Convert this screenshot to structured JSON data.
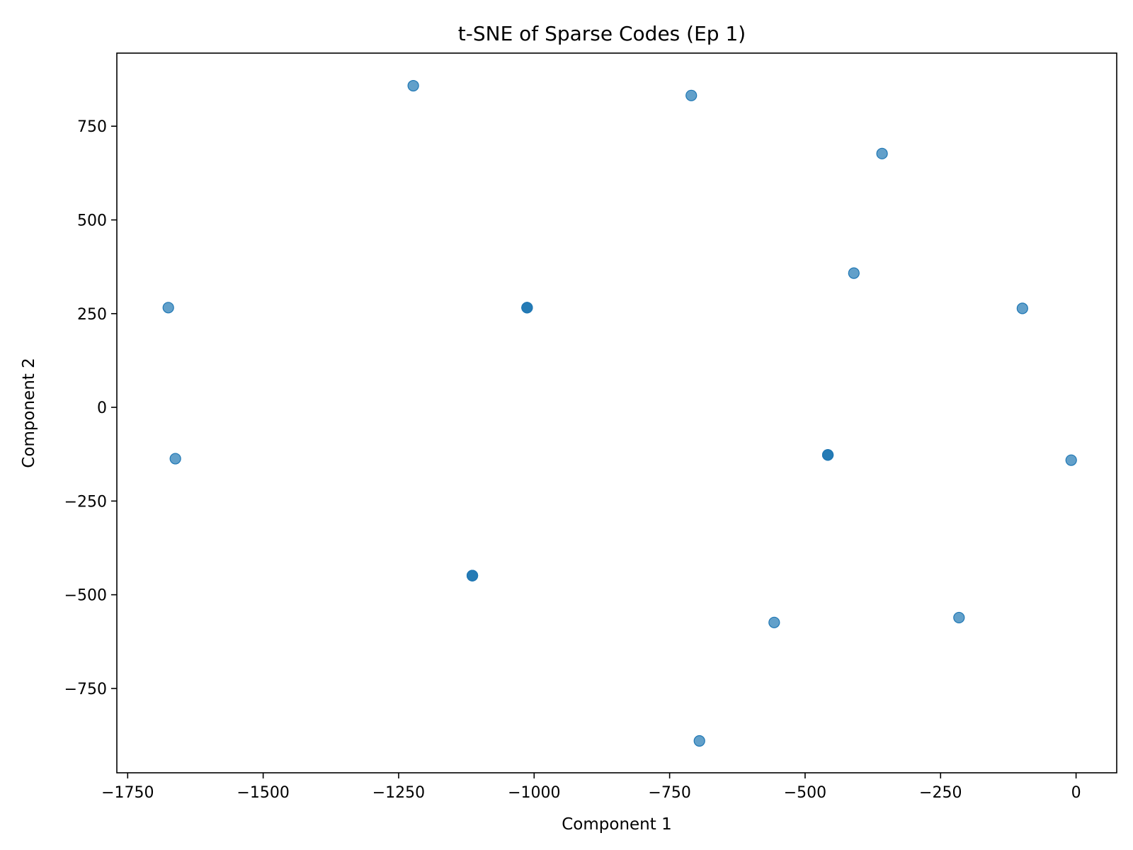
{
  "chart_data": {
    "type": "scatter",
    "title": "t-SNE of Sparse Codes (Ep 1)",
    "xlabel": "Component 1",
    "ylabel": "Component 2",
    "xlim": [
      -1770,
      75
    ],
    "ylim": [
      -975,
      945
    ],
    "xticks": [
      -1750,
      -1500,
      -1250,
      -1000,
      -750,
      -500,
      -250,
      0
    ],
    "xtick_labels": [
      "−1750",
      "−1500",
      "−1250",
      "−1000",
      "−750",
      "−500",
      "−250",
      "0"
    ],
    "yticks": [
      750,
      500,
      250,
      0,
      -250,
      -500,
      -750
    ],
    "ytick_labels": [
      "750",
      "500",
      "250",
      "0",
      "−250",
      "−500",
      "−750"
    ],
    "grid": false,
    "marker_color": "#1f77b4",
    "marker_alpha": 0.7,
    "points": [
      {
        "x": -1223,
        "y": 858
      },
      {
        "x": -710,
        "y": 832
      },
      {
        "x": -358,
        "y": 677
      },
      {
        "x": -410,
        "y": 358
      },
      {
        "x": -1675,
        "y": 266
      },
      {
        "x": -1013,
        "y": 266
      },
      {
        "x": -1013,
        "y": 266
      },
      {
        "x": -1013,
        "y": 266
      },
      {
        "x": -99,
        "y": 264
      },
      {
        "x": -1662,
        "y": -137
      },
      {
        "x": -458,
        "y": -127
      },
      {
        "x": -458,
        "y": -127
      },
      {
        "x": -458,
        "y": -127
      },
      {
        "x": -9,
        "y": -141
      },
      {
        "x": -1114,
        "y": -449
      },
      {
        "x": -1114,
        "y": -449
      },
      {
        "x": -1114,
        "y": -449
      },
      {
        "x": -557,
        "y": -574
      },
      {
        "x": -216,
        "y": -561
      },
      {
        "x": -695,
        "y": -890
      }
    ]
  }
}
